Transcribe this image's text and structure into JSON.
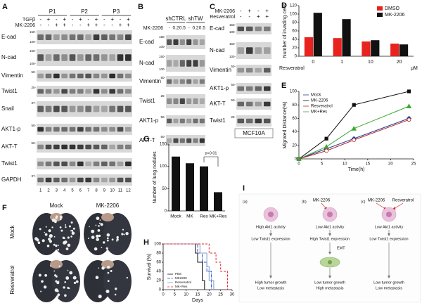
{
  "panels": {
    "A": {
      "label": "A",
      "groups": [
        "P1",
        "P2",
        "P3"
      ],
      "treatments": [
        {
          "name": "TGFβ",
          "signs": [
            "-",
            "+",
            "-",
            "+",
            "-",
            "+",
            "-",
            "+",
            "-",
            "+",
            "-",
            "+"
          ]
        },
        {
          "name": "MK-2206",
          "signs": [
            "-",
            "-",
            "+",
            "+",
            "-",
            "-",
            "+",
            "+",
            "-",
            "-",
            "+",
            "+"
          ]
        }
      ],
      "rows": [
        {
          "name": "E-cad",
          "markers": [
            "150-",
            "100-"
          ]
        },
        {
          "name": "N-cad",
          "markers": [
            "150-",
            "100-"
          ]
        },
        {
          "name": "Vimentin",
          "markers": [
            "50-"
          ]
        },
        {
          "name": "Twist1",
          "markers": [
            "25-"
          ]
        },
        {
          "name": "Snail",
          "markers": [
            "37-"
          ]
        },
        {
          "name": "AKT1-p",
          "markers": [
            "50-"
          ]
        },
        {
          "name": "AKT-T",
          "markers": [
            "50-"
          ]
        },
        {
          "name": "Twist1",
          "markers": []
        },
        {
          "name": "GAPDH",
          "markers": [
            "37-"
          ]
        }
      ],
      "lanes": [
        1,
        2,
        3,
        4,
        5,
        6,
        7,
        8,
        9,
        10,
        11,
        12
      ]
    },
    "B": {
      "label": "B",
      "groups": [
        "shCTRL",
        "shTW"
      ],
      "treatment": "MK-2206",
      "doses": [
        "-",
        "0.2",
        "0.5",
        "-",
        "0.2",
        "0.5"
      ],
      "rows": [
        {
          "name": "E-cad",
          "markers": [
            "150-",
            "100-"
          ]
        },
        {
          "name": "N-cad",
          "markers": [
            "150-",
            "100-"
          ]
        },
        {
          "name": "Vimentin",
          "markers": [
            "50-"
          ]
        },
        {
          "name": "Twist1",
          "markers": [
            "25-"
          ]
        },
        {
          "name": "AKT1-p",
          "markers": [
            "50-"
          ]
        },
        {
          "name": "AKT-T",
          "markers": [
            "50-"
          ]
        }
      ]
    },
    "C": {
      "label": "C",
      "treatments": [
        {
          "name": "MK-2206",
          "signs": [
            "-",
            "+",
            "-",
            "+"
          ]
        },
        {
          "name": "Resveratrol",
          "signs": [
            "-",
            "-",
            "+",
            "+"
          ]
        }
      ],
      "rows": [
        {
          "name": "E-cad",
          "markers": [
            "150-",
            "100-"
          ]
        },
        {
          "name": "N-cad",
          "markers": [
            "150-",
            "100-"
          ]
        },
        {
          "name": "Vimentin",
          "markers": [
            "50-"
          ]
        },
        {
          "name": "AKT1-p",
          "markers": [
            "50-"
          ]
        },
        {
          "name": "AKT-T",
          "markers": [
            "50-"
          ]
        },
        {
          "name": "Twist1",
          "markers": [
            "25-"
          ]
        }
      ],
      "cell_line": "MCF10A"
    },
    "F": {
      "label": "F",
      "columns": [
        "Mock",
        "MK-2206"
      ],
      "rows": [
        "Mock",
        "Resveratrol"
      ]
    },
    "I": {
      "label": "I",
      "columns": [
        {
          "tag": "(a)",
          "drugs": [],
          "lines": [
            "High Akt1 activity",
            "Low Twist1 expression"
          ],
          "outcome": [
            "High tumor growth",
            "Low metastasis"
          ]
        },
        {
          "tag": "(b)",
          "drugs": [
            "MK-2206"
          ],
          "lines": [
            "Low Akt1 activity",
            "High Twist1 expression"
          ],
          "emt": "EMT",
          "outcome": [
            "Low tumor growth",
            "High metastasis"
          ]
        },
        {
          "tag": "(c)",
          "drugs": [
            "MK-2206",
            "Resveratrol"
          ],
          "lines": [
            "Low Akt1 activity",
            "Low Twist1 expression"
          ],
          "outcome": [
            "Low tumor growth",
            "Low metastasis"
          ]
        }
      ]
    }
  },
  "chart_data": [
    {
      "type": "bar",
      "panel_label": "D",
      "y_label": "Number of invading cells",
      "x_label": "Resveratrol",
      "x_unit": "μM",
      "categories": [
        "0",
        "1",
        "10",
        "20"
      ],
      "series": [
        {
          "name": "DMSO",
          "color": "#e8221e",
          "values": [
            45,
            43,
            35,
            30
          ]
        },
        {
          "name": "MK-2206",
          "color": "#111111",
          "values": [
            103,
            88,
            38,
            28
          ]
        }
      ],
      "ylim": [
        0,
        120
      ],
      "yticks": [
        0,
        20,
        40,
        60,
        80,
        100,
        120
      ],
      "legend": "upper right"
    },
    {
      "type": "line",
      "panel_label": "E",
      "y_label": "Migrated Distance(%)",
      "x_label": "Time(h)",
      "series": [
        {
          "name": "Mock",
          "color": "#1f3c9b",
          "marker": "diamond",
          "x": [
            0,
            6,
            12,
            24
          ],
          "values": [
            0,
            15,
            30,
            60
          ]
        },
        {
          "name": "MK-2206",
          "color": "#111111",
          "marker": "square",
          "x": [
            0,
            6,
            12,
            24
          ],
          "values": [
            0,
            30,
            80,
            100
          ]
        },
        {
          "name": "Resveratrol",
          "color": "#c0282a",
          "marker": "circle",
          "x": [
            0,
            6,
            12,
            24
          ],
          "values": [
            0,
            12,
            28,
            58
          ]
        },
        {
          "name": "MK+Res",
          "color": "#3aa935",
          "marker": "triangle",
          "x": [
            0,
            6,
            12,
            24
          ],
          "values": [
            0,
            18,
            45,
            78
          ]
        }
      ],
      "xlim": [
        0,
        25
      ],
      "xticks": [
        0,
        5,
        10,
        15,
        20,
        25
      ],
      "ylim": [
        0,
        100
      ],
      "yticks": [
        0,
        20,
        40,
        60,
        80,
        100
      ],
      "legend": "upper left"
    },
    {
      "type": "bar",
      "panel_label": "G",
      "y_label": "Number of lung nodules",
      "annotation": "p<0.01",
      "categories": [
        "Mock",
        "MK",
        "Res",
        "MK+Res"
      ],
      "values": [
        122,
        107,
        100,
        42
      ],
      "color": "#111111",
      "ylim": [
        0,
        150
      ],
      "yticks": [
        0,
        50,
        100,
        150
      ]
    },
    {
      "type": "line",
      "panel_label": "H",
      "y_label": "Survival (%)",
      "x_label": "Days",
      "series": [
        {
          "name": "PBS",
          "color": "#111111",
          "dash": "none",
          "x": [
            0,
            14,
            14,
            15,
            15,
            17,
            17,
            18,
            18
          ],
          "values": [
            100,
            100,
            80,
            80,
            60,
            60,
            20,
            20,
            0
          ]
        },
        {
          "name": "MK2206",
          "color": "#2b4fd6",
          "dash": "4 1 1 1",
          "x": [
            0,
            15,
            15,
            17,
            17,
            19,
            19,
            21,
            21
          ],
          "values": [
            100,
            100,
            80,
            80,
            60,
            60,
            40,
            40,
            0
          ]
        },
        {
          "name": "Resveratrol",
          "color": "#7f9fc9",
          "dash": "none",
          "x": [
            0,
            16,
            16,
            19,
            19,
            20,
            20,
            22,
            22
          ],
          "values": [
            100,
            100,
            80,
            80,
            50,
            50,
            20,
            20,
            0
          ]
        },
        {
          "name": "MK+Res",
          "color": "#e0262a",
          "dash": "3 2",
          "x": [
            0,
            20,
            20,
            23,
            23,
            25,
            25,
            28,
            28
          ],
          "values": [
            100,
            100,
            80,
            80,
            60,
            60,
            40,
            40,
            0
          ]
        }
      ],
      "xlim": [
        0,
        30
      ],
      "xticks": [
        0,
        5,
        10,
        15,
        20,
        25,
        30
      ],
      "ylim": [
        0,
        100
      ],
      "yticks": [
        0,
        20,
        40,
        60,
        80,
        100
      ],
      "legend": "lower left"
    }
  ]
}
